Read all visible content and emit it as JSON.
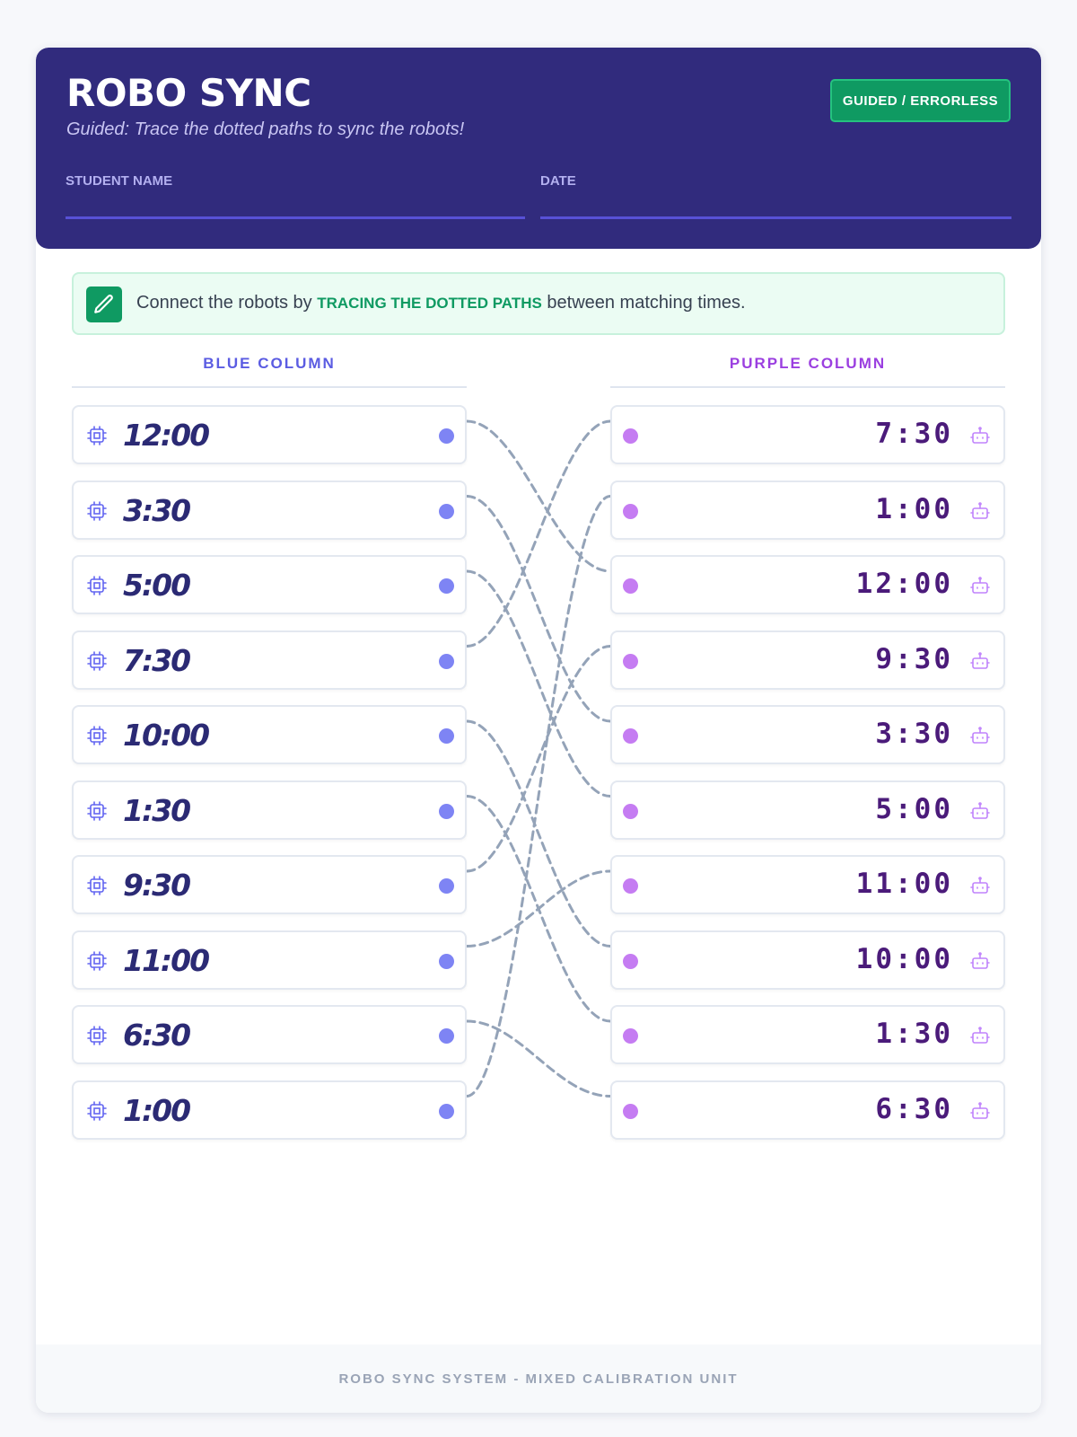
{
  "header": {
    "title": "ROBO SYNC",
    "subtitle": "Guided: Trace the dotted paths to sync the robots!",
    "mode_badge": "GUIDED / ERRORLESS",
    "student_name_label": "STUDENT NAME",
    "date_label": "DATE"
  },
  "instruction": {
    "prefix": "Connect the robots by ",
    "highlight": "TRACING THE DOTTED PATHS",
    "suffix": " between matching times.",
    "icon": "pencil-icon"
  },
  "columns": {
    "left": {
      "heading": "BLUE COLUMN",
      "icon": "chip-icon",
      "items": [
        "12:00",
        "3:30",
        "5:00",
        "7:30",
        "10:00",
        "1:30",
        "9:30",
        "11:00",
        "6:30",
        "1:00"
      ]
    },
    "right": {
      "heading": "PURPLE COLUMN",
      "icon": "robot-icon",
      "items": [
        "7:30",
        "1:00",
        "12:00",
        "9:30",
        "3:30",
        "5:00",
        "11:00",
        "10:00",
        "1:30",
        "6:30"
      ]
    }
  },
  "connections": [
    [
      0,
      2
    ],
    [
      1,
      4
    ],
    [
      2,
      5
    ],
    [
      3,
      0
    ],
    [
      4,
      7
    ],
    [
      5,
      8
    ],
    [
      6,
      3
    ],
    [
      7,
      6
    ],
    [
      8,
      9
    ],
    [
      9,
      1
    ]
  ],
  "colors": {
    "header_bg": "#312b7d",
    "left_accent": "#5b5ce2",
    "right_accent": "#9b3fe0",
    "path_color": "#94a3b8",
    "badge_green": "#0f9a62"
  },
  "footer": "ROBO SYNC SYSTEM - MIXED CALIBRATION UNIT"
}
